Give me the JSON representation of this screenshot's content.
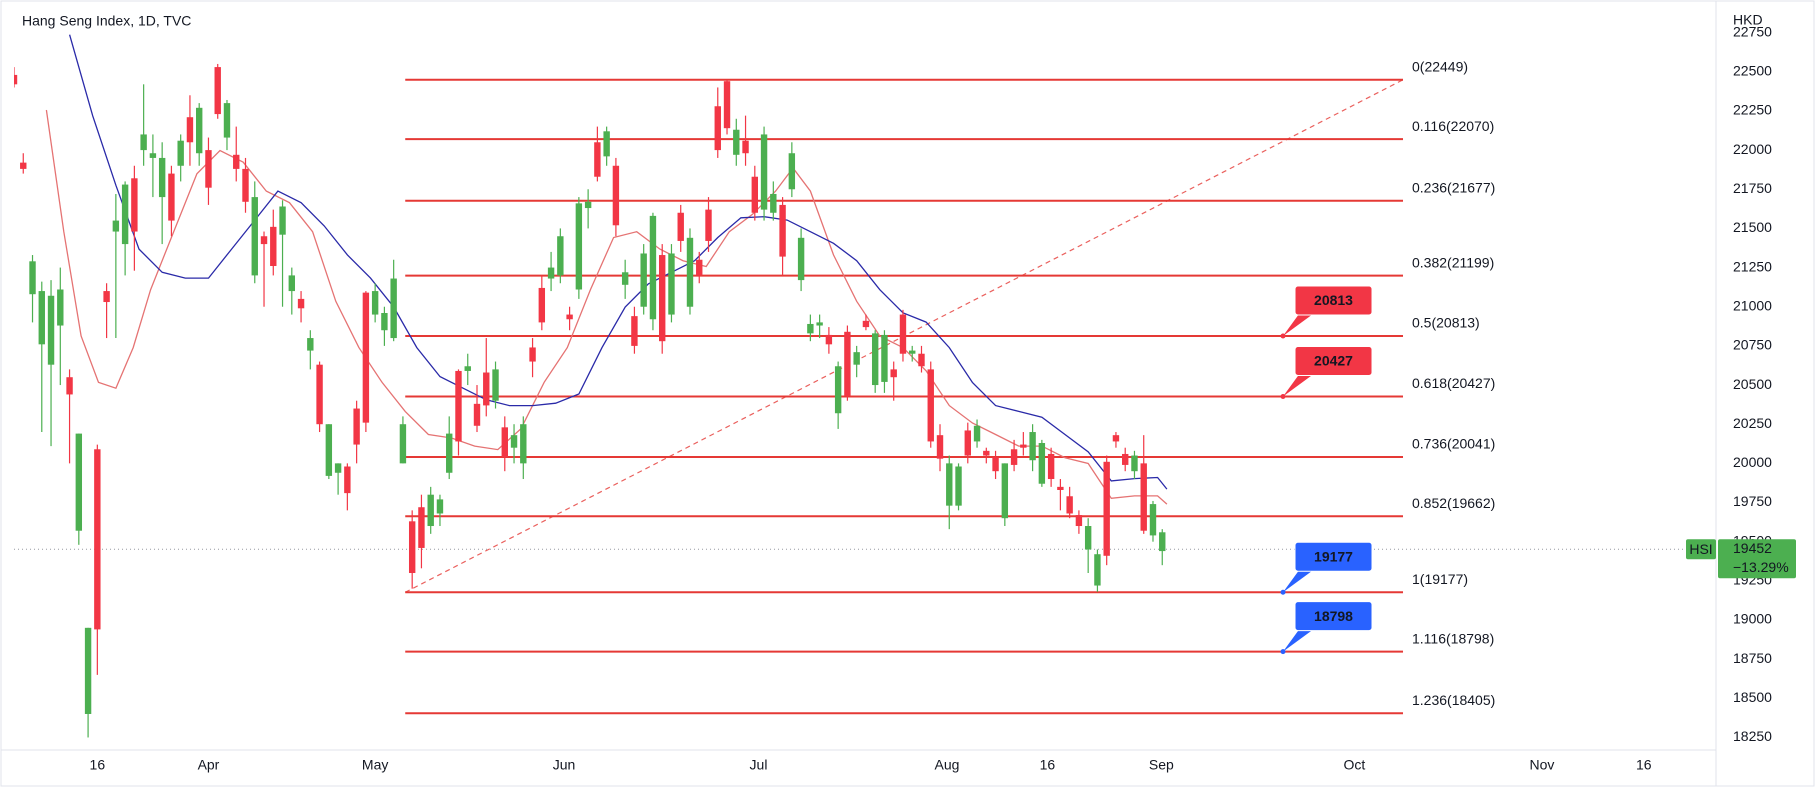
{
  "chart_data": {
    "type": "candlestick",
    "title": "Hang Seng Index, 1D, TVC",
    "y_axis_label": "HKD",
    "up_color": "#4caf50",
    "down_color": "#f23645",
    "x": [
      0,
      1,
      2,
      3,
      4,
      5,
      6,
      7,
      8,
      9,
      10,
      11,
      12,
      13,
      14,
      15,
      16,
      17,
      18,
      19,
      20,
      21,
      22,
      23,
      24,
      25,
      26,
      27,
      28,
      29,
      30,
      31,
      32,
      33,
      34,
      35,
      36,
      37,
      38,
      39,
      40,
      41,
      42,
      43,
      44,
      45,
      46,
      47,
      48,
      49,
      50,
      51,
      52,
      53,
      54,
      55,
      56,
      57,
      58,
      59,
      60,
      61,
      62,
      63,
      64,
      65,
      66,
      67,
      68,
      69,
      70,
      71,
      72,
      73,
      74,
      75,
      76,
      77,
      78,
      79,
      80,
      81,
      82,
      83,
      84,
      85,
      86,
      87,
      88,
      89,
      90,
      91,
      92,
      93,
      94,
      95,
      96,
      97,
      98,
      99,
      100,
      101,
      102,
      103,
      104,
      105,
      106,
      107,
      108,
      109,
      110,
      111,
      112,
      113,
      114,
      115,
      116,
      117,
      118,
      119,
      120,
      121,
      122,
      123,
      124
    ],
    "open": [
      22480,
      21920,
      21080,
      20760,
      20630,
      20880,
      20550,
      19570,
      18400,
      20090,
      21100,
      21480,
      21400,
      21820,
      22000,
      21950,
      21700,
      21850,
      21900,
      22210,
      21980,
      22000,
      22530,
      22080,
      21970,
      21880,
      21200,
      21450,
      21510,
      21460,
      21100,
      21050,
      20720,
      20630,
      19920,
      19940,
      19980,
      20350,
      21090,
      20950,
      20850,
      20800,
      20000,
      19630,
      19720,
      19600,
      19680,
      19940,
      20590,
      20590,
      20380,
      20580,
      20400,
      20230,
      20100,
      20000,
      20740,
      21120,
      21180,
      21200,
      20950,
      21110,
      21630,
      22050,
      21960,
      21900,
      21140,
      20940,
      21000,
      20920,
      21330,
      20950,
      21600,
      21000,
      21300,
      21620,
      22280,
      22440,
      21970,
      22060,
      21830,
      21620,
      21600,
      21650,
      21750,
      21170,
      20830,
      20880,
      20820,
      20320,
      20840,
      20630,
      20910,
      20500,
      20520,
      20600,
      20950,
      20700,
      20700,
      20600,
      20180,
      19730,
      19730,
      20210,
      20140,
      20080,
      20040,
      19650,
      20090,
      20120,
      20020,
      19870,
      20060,
      19850,
      19790,
      19670,
      19450,
      19220,
      20010,
      20180,
      20060,
      19950,
      20000,
      19540,
      19440
    ],
    "high": [
      22530,
      21980,
      21330,
      21160,
      21170,
      21250,
      20600,
      20190,
      18950,
      20120,
      21150,
      21720,
      21800,
      21900,
      22420,
      22100,
      22050,
      21900,
      22100,
      22350,
      22300,
      22080,
      22550,
      22320,
      22150,
      21950,
      21800,
      21480,
      21620,
      21680,
      21250,
      21100,
      20850,
      20650,
      20250,
      20000,
      20000,
      20400,
      21100,
      21150,
      21000,
      21300,
      20300,
      19700,
      19800,
      19850,
      19800,
      20300,
      20600,
      20700,
      20500,
      20800,
      20650,
      20300,
      20250,
      20300,
      20800,
      21200,
      21350,
      21500,
      21000,
      21700,
      21750,
      22150,
      22150,
      21950,
      21300,
      21000,
      21400,
      21600,
      21400,
      21400,
      21650,
      21500,
      21350,
      21700,
      22400,
      22450,
      22200,
      22220,
      21900,
      22150,
      21800,
      21700,
      22050,
      21500,
      20950,
      20950,
      20870,
      20650,
      20880,
      20750,
      20950,
      20850,
      20850,
      20650,
      20980,
      20750,
      20750,
      20650,
      20250,
      20050,
      20000,
      20260,
      20280,
      20100,
      20080,
      20000,
      20150,
      20200,
      20250,
      20150,
      20100,
      19900,
      19850,
      19700,
      19650,
      19450,
      20050,
      20200,
      20100,
      20080,
      20180,
      19760,
      19580
    ],
    "low": [
      22400,
      21850,
      20900,
      20200,
      20110,
      20500,
      20000,
      19480,
      18250,
      18650,
      20800,
      20800,
      21200,
      21230,
      21900,
      21700,
      21400,
      21450,
      21800,
      21900,
      21900,
      21650,
      22200,
      22000,
      21800,
      21600,
      21150,
      21000,
      21200,
      21000,
      20950,
      20900,
      20600,
      20200,
      19900,
      19800,
      19700,
      20000,
      20200,
      20900,
      20750,
      20780,
      20000,
      19200,
      19330,
      19550,
      19600,
      19900,
      20050,
      20500,
      20200,
      20300,
      20350,
      19950,
      20000,
      19900,
      20550,
      20850,
      21100,
      21150,
      20850,
      21050,
      21500,
      21800,
      21900,
      21450,
      21050,
      20700,
      20950,
      20850,
      20700,
      20900,
      21350,
      20950,
      21150,
      21350,
      21950,
      22100,
      21900,
      21900,
      21550,
      21550,
      21550,
      21200,
      21700,
      21100,
      20780,
      20800,
      20700,
      20220,
      20400,
      20550,
      20850,
      20450,
      20450,
      20400,
      20650,
      20650,
      20580,
      20100,
      19950,
      19580,
      19700,
      20000,
      20100,
      20000,
      19900,
      19600,
      19950,
      20050,
      19950,
      19850,
      19850,
      19700,
      19650,
      19550,
      19300,
      19180,
      19350,
      20100,
      19950,
      19900,
      19550,
      19500,
      19350
    ],
    "close": [
      22420,
      21880,
      21290,
      21100,
      21070,
      21110,
      20440,
      20190,
      18950,
      18940,
      21030,
      21550,
      21780,
      21480,
      22100,
      21980,
      21950,
      21550,
      22060,
      22050,
      22270,
      21760,
      22230,
      22300,
      21880,
      21670,
      21700,
      21400,
      21260,
      21640,
      21200,
      20990,
      20800,
      20250,
      20250,
      20000,
      19810,
      20120,
      20260,
      21100,
      20960,
      21180,
      20250,
      19300,
      19460,
      19800,
      19770,
      20190,
      20140,
      20620,
      20240,
      20370,
      20600,
      20040,
      20180,
      20250,
      20650,
      20900,
      21250,
      21450,
      20920,
      21660,
      21670,
      21830,
      22120,
      21520,
      21220,
      20750,
      21340,
      21580,
      20780,
      21340,
      21420,
      21440,
      21200,
      21420,
      22000,
      22140,
      22130,
      21980,
      21600,
      22100,
      21720,
      21320,
      21980,
      21440,
      20890,
      20900,
      20760,
      20620,
      20430,
      20710,
      20870,
      20830,
      20820,
      20550,
      20700,
      20720,
      20620,
      20140,
      20030,
      20000,
      19980,
      20050,
      20240,
      20050,
      19950,
      20000,
      19990,
      20100,
      20200,
      20130,
      19900,
      19830,
      19680,
      19600,
      19600,
      19420,
      19410,
      20140,
      19990,
      20050,
      19570,
      19740,
      19560
    ],
    "xlim": [
      0,
      183.8
    ],
    "xticks": [
      {
        "value": 9,
        "label": "16"
      },
      {
        "value": 21,
        "label": "Apr"
      },
      {
        "value": 39,
        "label": "May"
      },
      {
        "value": 59.4,
        "label": "Jun"
      },
      {
        "value": 80.4,
        "label": "Jul"
      },
      {
        "value": 100.75,
        "label": "Aug"
      },
      {
        "value": 111.6,
        "label": "16"
      },
      {
        "value": 123.9,
        "label": "Sep"
      },
      {
        "value": 144.75,
        "label": "Oct"
      },
      {
        "value": 165,
        "label": "Nov"
      },
      {
        "value": 176,
        "label": "16"
      }
    ],
    "ylim": [
      18170,
      22920
    ],
    "yticks": [
      18250,
      18500,
      18750,
      19000,
      19250,
      19500,
      19750,
      20000,
      20250,
      20500,
      20750,
      21000,
      21250,
      21500,
      21750,
      22000,
      22250,
      22500,
      22750
    ],
    "moving_averages": [
      {
        "color": "#e57373",
        "x": [
          3.5,
          5.375,
          7.25,
          9.125,
          11,
          12.875,
          14.75,
          17.25,
          19.75,
          22.25,
          24.75,
          27.25,
          29.75,
          32.25,
          34.75,
          37.25,
          39.75,
          42.25,
          44.75,
          47.25,
          49.75,
          52.25,
          54.75,
          57.25,
          59.75,
          62.25,
          64.75,
          67.25,
          69.75,
          72.25,
          74.75,
          77.25,
          79.75,
          82.25,
          84.125,
          86,
          88.5,
          91,
          93.5,
          96,
          98.5,
          101,
          103.5,
          106,
          108.5,
          111,
          113.5,
          116,
          118.5,
          121,
          123.5,
          124.5
        ],
        "values": [
          22256,
          21479,
          20813,
          20517,
          20480,
          20739,
          21109,
          21479,
          21849,
          21997,
          21923,
          21738,
          21664,
          21479,
          21035,
          20739,
          20517,
          20332,
          20184,
          20162,
          20110,
          20088,
          20221,
          20517,
          20739,
          21109,
          21442,
          21479,
          21368,
          21294,
          21257,
          21479,
          21590,
          21738,
          21886,
          21738,
          21331,
          21035,
          20813,
          20739,
          20591,
          20369,
          20258,
          20184,
          20110,
          20110,
          20036,
          19999,
          19777,
          19792,
          19792,
          19740
        ]
      },
      {
        "color": "#2a2aa8",
        "x": [
          6,
          8.5,
          11,
          13.5,
          16,
          18.5,
          21,
          23.5,
          26,
          28.5,
          31,
          33.5,
          36,
          38.5,
          41,
          43.5,
          46,
          48.5,
          51,
          53.5,
          56,
          58.5,
          61,
          63.5,
          66,
          68.5,
          71,
          73.5,
          76,
          78.5,
          81,
          83.5,
          86,
          88.5,
          91,
          93.5,
          96,
          98.5,
          101,
          103.5,
          106,
          108.5,
          111,
          113.5,
          116,
          118.5,
          121,
          123.5,
          124.5
        ],
        "values": [
          22737,
          22219,
          21775,
          21368,
          21220,
          21183,
          21183,
          21368,
          21553,
          21738,
          21664,
          21516,
          21331,
          21183,
          20998,
          20739,
          20554,
          20480,
          20406,
          20369,
          20369,
          20384,
          20443,
          20739,
          20998,
          21146,
          21220,
          21294,
          21442,
          21568,
          21575,
          21553,
          21479,
          21405,
          21294,
          21109,
          20961,
          20902,
          20739,
          20517,
          20369,
          20332,
          20295,
          20184,
          20073,
          19888,
          19903,
          19910,
          19836
        ]
      }
    ],
    "fibonacci": {
      "color": "#e53935",
      "label_color": "#e57373",
      "x_range": [
        42.25,
        150
      ],
      "levels": [
        {
          "value": 22449,
          "label": "0(22449)"
        },
        {
          "value": 22070,
          "label": "0.116(22070)"
        },
        {
          "value": 21677,
          "label": "0.236(21677)"
        },
        {
          "value": 21199,
          "label": "0.382(21199)"
        },
        {
          "value": 20813,
          "label": "0.5(20813)"
        },
        {
          "value": 20427,
          "label": "0.618(20427)"
        },
        {
          "value": 20041,
          "label": "0.736(20041)"
        },
        {
          "value": 19662,
          "label": "0.852(19662)"
        },
        {
          "value": 19177,
          "label": "1(19177)"
        },
        {
          "value": 18798,
          "label": "1.116(18798)"
        },
        {
          "value": 18405,
          "label": "1.236(18405)"
        }
      ]
    },
    "callouts": [
      {
        "value": 20813,
        "color": "#f23645"
      },
      {
        "value": 20427,
        "color": "#f23645"
      },
      {
        "value": 19177,
        "color": "#2962ff"
      },
      {
        "value": 18798,
        "color": "#2962ff"
      }
    ],
    "last_price": {
      "symbol": "HSI",
      "value": 19452,
      "change": "−13.29%",
      "color": "#4caf50"
    }
  }
}
